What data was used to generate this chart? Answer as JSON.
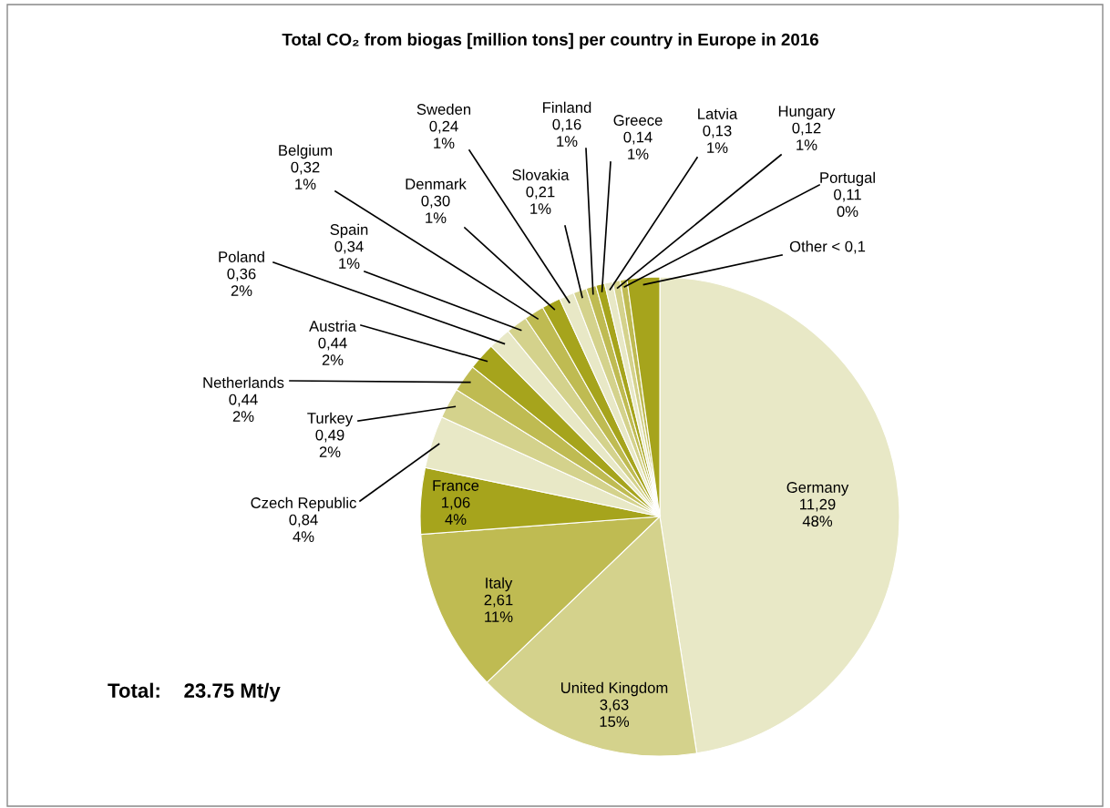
{
  "chart_data": {
    "type": "pie",
    "title": "Total CO₂ from biogas [million tons] per country in Europe in 2016",
    "categories": [
      "Germany",
      "United Kingdom",
      "Italy",
      "France",
      "Czech Republic",
      "Turkey",
      "Netherlands",
      "Austria",
      "Poland",
      "Spain",
      "Belgium",
      "Denmark",
      "Sweden",
      "Slovakia",
      "Finland",
      "Greece",
      "Latvia",
      "Hungary",
      "Portugal",
      "Other < 0,1"
    ],
    "values": [
      11.29,
      3.63,
      2.61,
      1.06,
      0.84,
      0.49,
      0.44,
      0.44,
      0.36,
      0.34,
      0.32,
      0.3,
      0.24,
      0.21,
      0.16,
      0.14,
      0.13,
      0.12,
      0.11,
      0.52
    ],
    "value_labels": [
      "11,29\n48%",
      "3,63\n15%",
      "2,61\n11%",
      "1,06\n4%",
      "0,84\n4%",
      "0,49\n2%",
      "0,44\n2%",
      "0,44\n2%",
      "0,36\n2%",
      "0,34\n1%",
      "0,32\n1%",
      "0,30\n1%",
      "0,24\n1%",
      "0,21\n1%",
      "0,16\n1%",
      "0,14\n1%",
      "0,13\n1%",
      "0,12\n1%",
      "0,11\n0%",
      null
    ],
    "colors": [
      "#e8e8c6",
      "#d4d28c",
      "#bfbb52",
      "#a6a41c",
      "#e8e8c6",
      "#d4d28c",
      "#bfbb52",
      "#a6a41c",
      "#e8e8c6",
      "#d4d28c",
      "#bfbb52",
      "#a6a41c",
      "#e8e8c6",
      "#d4d28c",
      "#bfbb52",
      "#a6a41c",
      "#e8e8c6",
      "#d4d28c",
      "#bfbb52",
      "#a6a41c"
    ],
    "annotations": [
      "Total:    23.75 Mt/y"
    ]
  }
}
